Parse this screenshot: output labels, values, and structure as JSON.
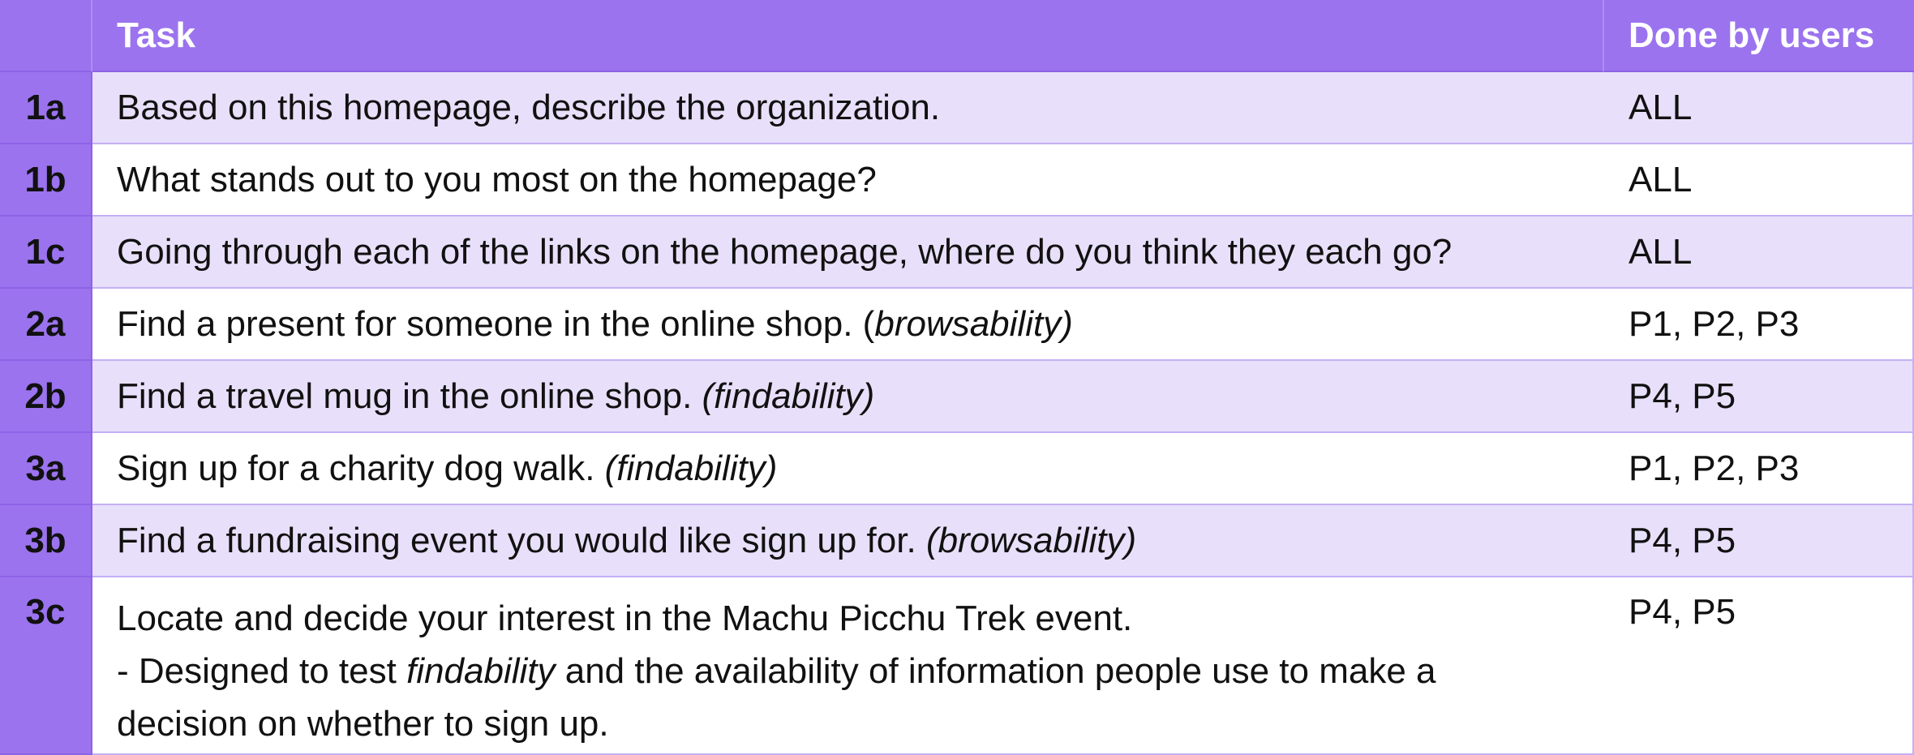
{
  "header": {
    "id": "",
    "task": "Task",
    "done_by": "Done by users"
  },
  "rows": [
    {
      "id": "1a",
      "task": "Based on this homepage, describe the organization.",
      "note": "",
      "done_by": "ALL"
    },
    {
      "id": "1b",
      "task": "What stands out to you most on the homepage?",
      "note": "",
      "done_by": "ALL"
    },
    {
      "id": "1c",
      "task": "Going through each of the links on the homepage, where do you think they each go?",
      "note": "",
      "done_by": "ALL"
    },
    {
      "id": "2a",
      "task": "Find a present for someone in the online shop. (",
      "note": "browsability)",
      "done_by": "P1, P2, P3"
    },
    {
      "id": "2b",
      "task": "Find a travel mug in the online shop. ",
      "note": "(findability)",
      "done_by": "P4, P5"
    },
    {
      "id": "3a",
      "task": "Sign up for a charity dog walk. ",
      "note": "(findability)",
      "done_by": "P1, P2, P3"
    },
    {
      "id": "3b",
      "task": "Find a fundraising event you would like sign up for. ",
      "note": "(browsability)",
      "done_by": "P4, P5"
    },
    {
      "id": "3c",
      "task_line1": "Locate and decide your interest in the Machu Picchu Trek event.",
      "task_line2_pre": "- Designed to test ",
      "task_line2_em": "findability",
      "task_line2_post": " and the availability of information people use to make a",
      "task_line3": "decision on whether to sign up.",
      "done_by": "P4, P5"
    }
  ],
  "colors": {
    "header_bg": "#9b73ee",
    "shaded_row_bg": "#e8e0fa",
    "plain_row_bg": "#ffffff"
  }
}
